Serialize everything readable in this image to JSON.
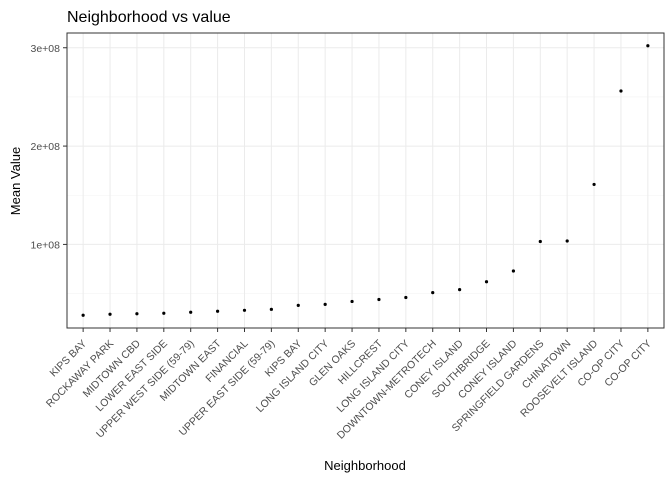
{
  "chart_data": {
    "type": "scatter",
    "title": "Neighborhood vs value",
    "xlabel": "Neighborhood",
    "ylabel": "Mean Value",
    "categories": [
      "KIPS BAY",
      "ROCKAWAY PARK",
      "MIDTOWN CBD",
      "LOWER EAST SIDE",
      "UPPER WEST SIDE (59-79)",
      "MIDTOWN EAST",
      "FINANCIAL",
      "UPPER EAST SIDE (59-79)",
      "KIPS BAY",
      "LONG ISLAND CITY",
      "GLEN OAKS",
      "HILLCREST",
      "LONG ISLAND CITY",
      "DOWNTOWN-METROTECH",
      "CONEY ISLAND",
      "SOUTHBRIDGE",
      "CONEY ISLAND",
      "SPRINGFIELD GARDENS",
      "CHINATOWN",
      "ROOSEVELT ISLAND",
      "CO-OP CITY",
      "CO-OP CITY"
    ],
    "values": [
      28000000,
      29000000,
      29500000,
      30000000,
      31000000,
      32000000,
      33000000,
      34000000,
      38000000,
      39000000,
      42000000,
      44000000,
      46000000,
      51000000,
      54000000,
      62000000,
      73000000,
      103000000,
      103500000,
      161000000,
      256000000,
      302000000
    ],
    "y_ticks": [
      100000000,
      200000000,
      300000000
    ],
    "y_tick_labels": [
      "1e+08",
      "2e+08",
      "3e+08"
    ],
    "ylim": [
      15000000,
      315000000
    ],
    "grid": true,
    "legend": "none"
  }
}
